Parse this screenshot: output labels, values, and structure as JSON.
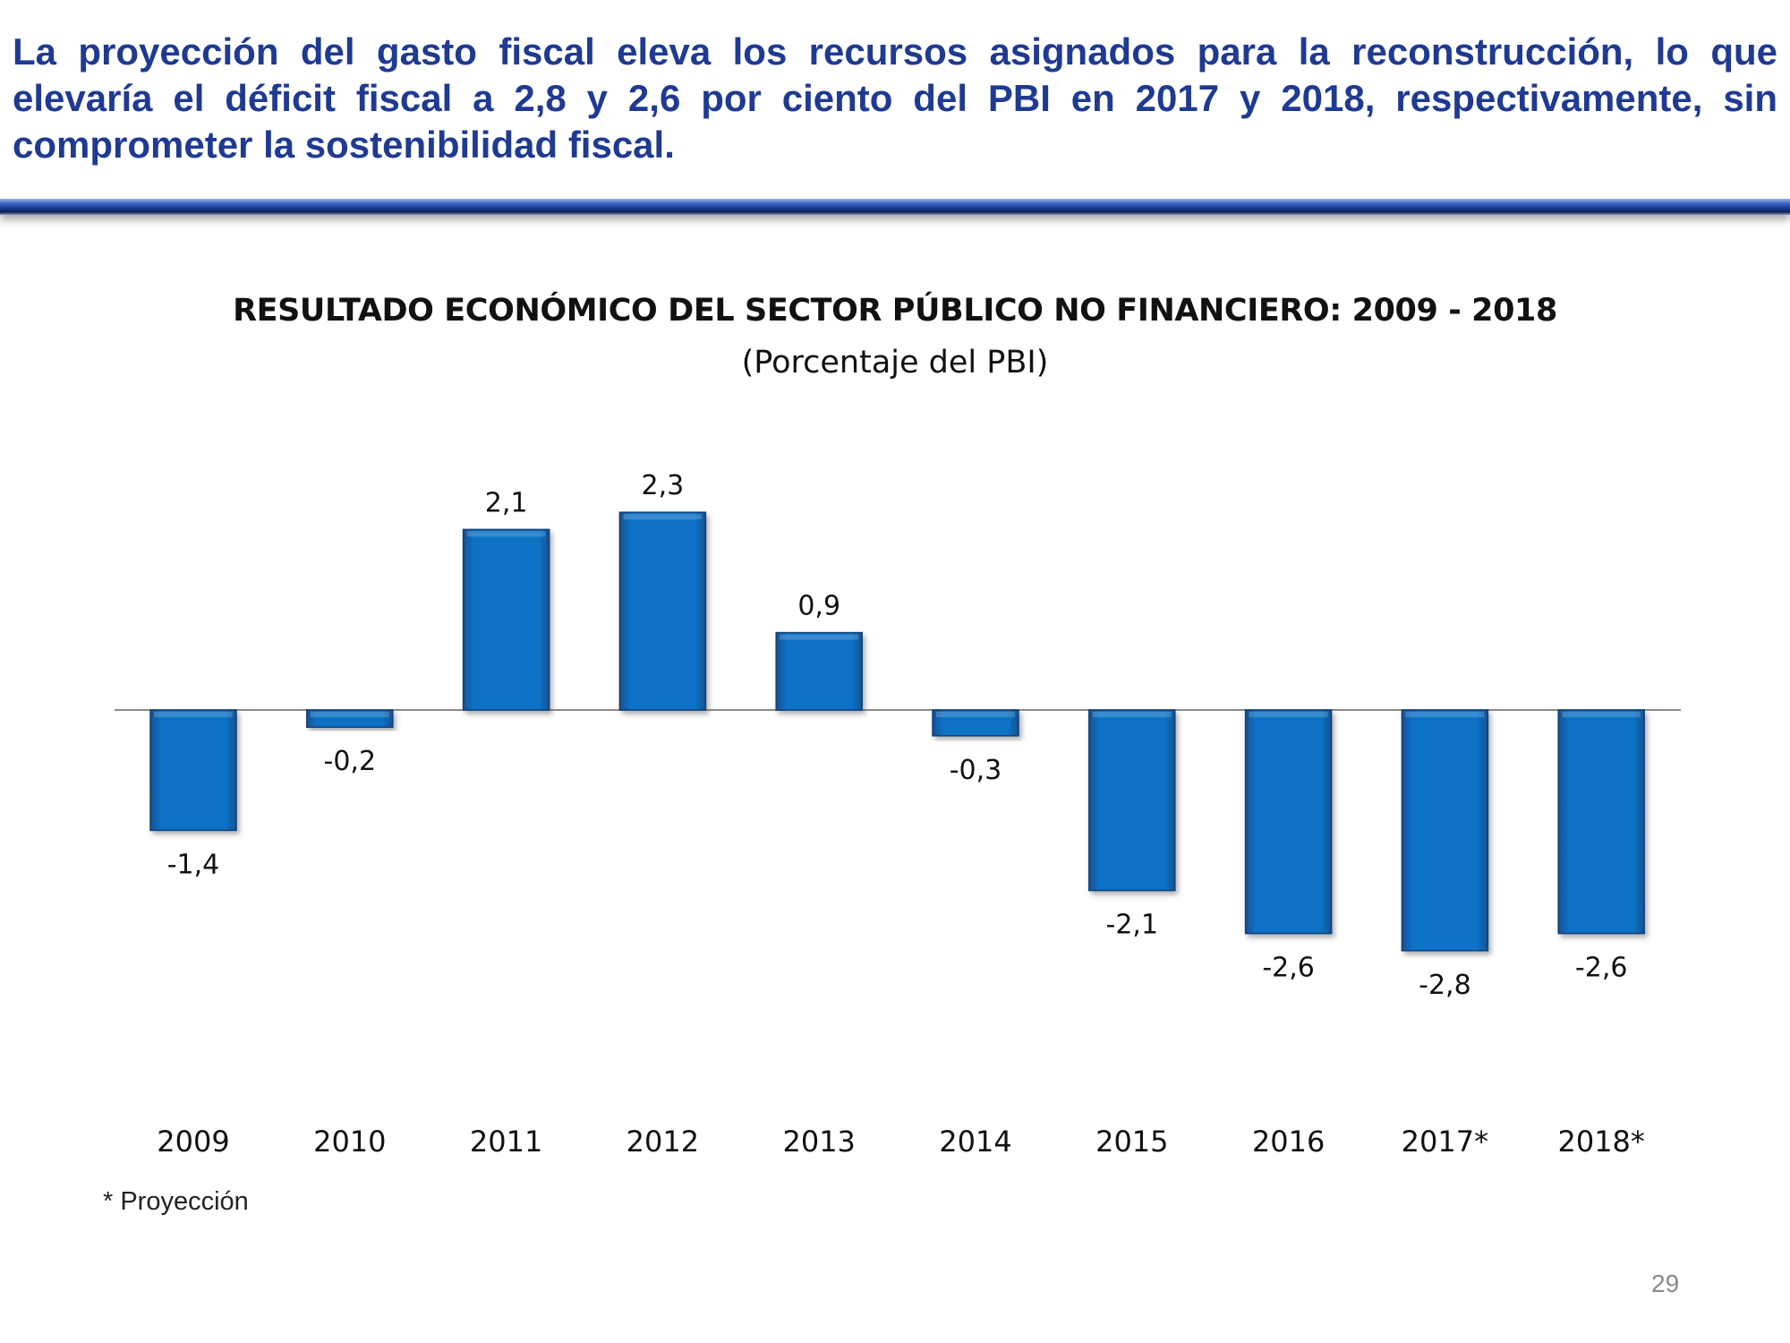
{
  "headline": "La proyección del gasto fiscal eleva los recursos asignados para la reconstrucción, lo que elevaría el déficit fiscal a 2,8 y 2,6 por ciento del PBI en 2017 y 2018, respectivamente, sin comprometer la sostenibilidad fiscal.",
  "chart_data": {
    "type": "bar",
    "title": "RESULTADO ECONÓMICO DEL SECTOR PÚBLICO NO FINANCIERO: 2009 - 2018",
    "subtitle": "(Porcentaje del PBI)",
    "categories": [
      "2009",
      "2010",
      "2011",
      "2012",
      "2013",
      "2014",
      "2015",
      "2016",
      "2017*",
      "2018*"
    ],
    "values": [
      -1.4,
      -0.2,
      2.1,
      2.3,
      0.9,
      -0.3,
      -2.1,
      -2.6,
      -2.8,
      -2.6
    ],
    "data_labels": [
      "-1,4",
      "-0,2",
      "2,1",
      "2,3",
      "0,9",
      "-0,3",
      "-2,1",
      "-2,6",
      "-2,8",
      "-2,6"
    ],
    "xlabel": "",
    "ylabel": "",
    "ylim": [
      -3.5,
      3.0
    ],
    "grid": false,
    "bar_color": "#0a72c6"
  },
  "footnote": "* Proyección",
  "page_number": "29"
}
